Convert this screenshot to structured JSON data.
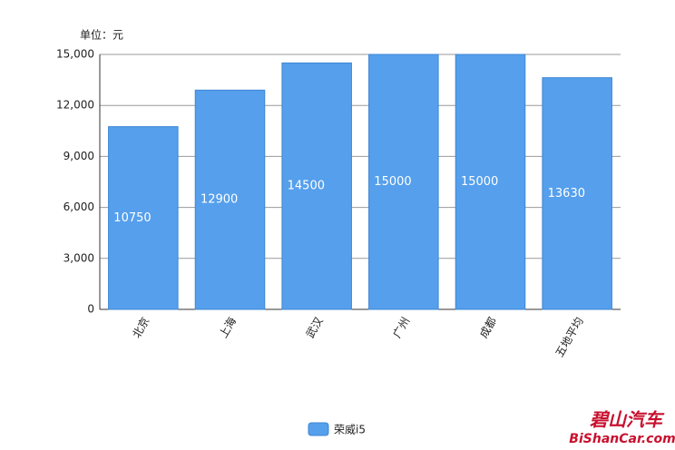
{
  "chart_data": {
    "type": "bar",
    "unit_label": "单位：元",
    "categories": [
      "北京",
      "上海",
      "武汉",
      "广州",
      "成都",
      "五地平均"
    ],
    "series": [
      {
        "name": "荣威i5",
        "color": "#559fec",
        "values": [
          10750,
          12900,
          14500,
          15000,
          15000,
          13630
        ]
      }
    ],
    "ylim": [
      0,
      15000
    ],
    "yticks": [
      0,
      {
        "value": 3000,
        "label": "3,000"
      },
      {
        "value": 6000,
        "label": "6,000"
      },
      {
        "value": 9000,
        "label": "9,000"
      },
      {
        "value": 12000,
        "label": "12,000"
      },
      {
        "value": 15000,
        "label": "15,000"
      }
    ],
    "grid": true,
    "legend": "bottom",
    "watermark": [
      "碧山汽车",
      "BiShanCar.com"
    ]
  }
}
